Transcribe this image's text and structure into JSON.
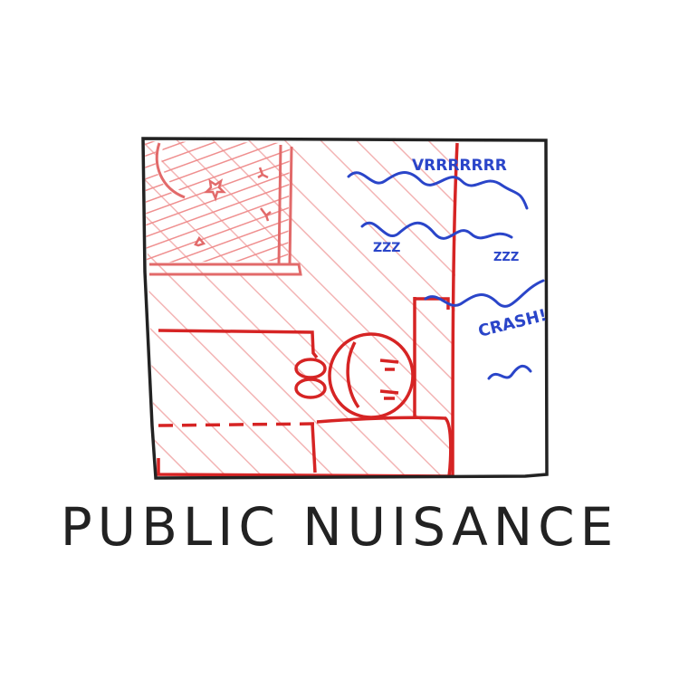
{
  "caption": "PUBLIC NUISANCE",
  "sounds": {
    "engine": "VRRRRRRR",
    "snore_left": "ZZZ",
    "snore_right": "ZZZ",
    "crash": "CRASH!"
  },
  "colors": {
    "ink": "#222222",
    "red": "#d62424",
    "pink_hatch": "#f3b4b4",
    "blue": "#2a45c9"
  }
}
